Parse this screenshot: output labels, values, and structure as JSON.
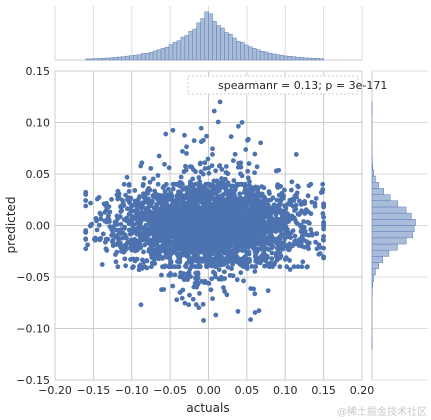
{
  "chart_data": {
    "type": "scatter",
    "subtype": "joint plot with marginal histograms",
    "xlabel": "actuals",
    "ylabel": "predicted",
    "xlim": [
      -0.2,
      0.2
    ],
    "ylim": [
      -0.15,
      0.15
    ],
    "x_ticks": [
      "−0.20",
      "−0.15",
      "−0.10",
      "−0.05",
      "0.00",
      "0.05",
      "0.10",
      "0.15",
      "0.20"
    ],
    "y_ticks": [
      "−0.15",
      "−0.10",
      "−0.05",
      "0.00",
      "0.05",
      "0.10",
      "0.15"
    ],
    "x_tick_values": [
      -0.2,
      -0.15,
      -0.1,
      -0.05,
      0.0,
      0.05,
      0.1,
      0.15,
      0.2
    ],
    "y_tick_values": [
      -0.15,
      -0.1,
      -0.05,
      0.0,
      0.05,
      0.1,
      0.15
    ],
    "annotation": "spearmanr = 0.13; p = 3e-171",
    "legend_position": "top-right",
    "grid": true,
    "point_color": "#4c72b0",
    "hist_fill": "#a9bcd9",
    "scatter_extent": {
      "x_range": [
        -0.16,
        0.15
      ],
      "dense_core_x": [
        -0.16,
        0.15
      ],
      "dense_core_y": [
        -0.04,
        0.04
      ],
      "outlier_y_range": [
        -0.12,
        0.12
      ]
    },
    "marginal_x": {
      "center": 0.0,
      "spread": 0.045,
      "range": [
        -0.16,
        0.15
      ]
    },
    "marginal_y": {
      "center": 0.0,
      "spread": 0.02,
      "range": [
        -0.12,
        0.12
      ]
    }
  },
  "watermark": "@稀土掘金技术社区"
}
